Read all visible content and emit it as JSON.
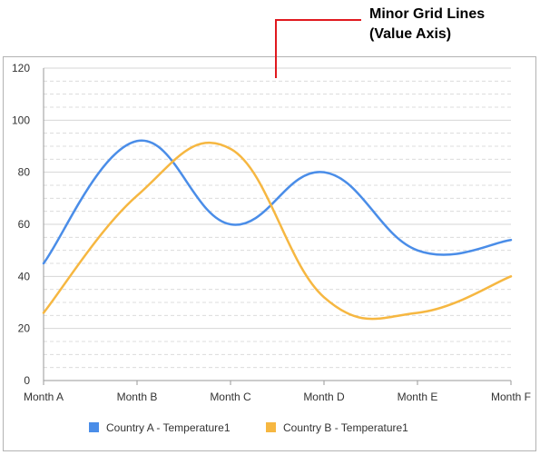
{
  "annotation": {
    "line1": "Minor Grid Lines",
    "line2": "(Value Axis)",
    "color": "#e0191f"
  },
  "chart_data": {
    "type": "line",
    "smooth": true,
    "categories": [
      "Month A",
      "Month B",
      "Month C",
      "Month D",
      "Month E",
      "Month F"
    ],
    "series": [
      {
        "name": "Country A - Temperature1",
        "color": "#4a8de8",
        "values": [
          45,
          92,
          60,
          80,
          50,
          54
        ]
      },
      {
        "name": "Country B - Temperature1",
        "color": "#f6b741",
        "values": [
          26,
          71,
          89,
          32,
          26,
          40
        ]
      }
    ],
    "ylim": [
      0,
      120
    ],
    "yticks": [
      "0",
      "20",
      "40",
      "60",
      "80",
      "100",
      "120"
    ],
    "major_grid": true,
    "minor_grid": true,
    "minor_grid_step": 4,
    "legend": "bottom"
  }
}
